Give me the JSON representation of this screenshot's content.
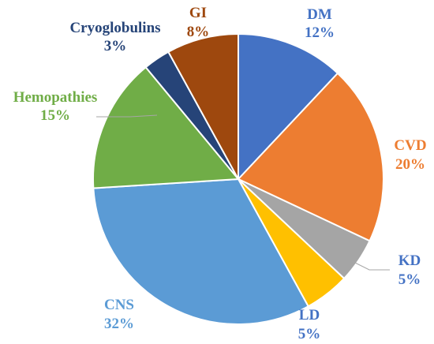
{
  "chart_data": {
    "type": "pie",
    "title": "",
    "slices": [
      {
        "name": "DM",
        "value": 12,
        "pct_label": "12%",
        "color": "#4472C4",
        "label_color": "#4472C4"
      },
      {
        "name": "CVD",
        "value": 20,
        "pct_label": "20%",
        "color": "#ED7D31",
        "label_color": "#ED7D31"
      },
      {
        "name": "KD",
        "value": 5,
        "pct_label": "5%",
        "color": "#A5A5A5",
        "label_color": "#4472C4"
      },
      {
        "name": "LD",
        "value": 5,
        "pct_label": "5%",
        "color": "#FFC000",
        "label_color": "#4472C4"
      },
      {
        "name": "CNS",
        "value": 32,
        "pct_label": "32%",
        "color": "#5B9BD5",
        "label_color": "#5B9BD5"
      },
      {
        "name": "Hemopathies",
        "value": 15,
        "pct_label": "15%",
        "color": "#70AD47",
        "label_color": "#70AD47"
      },
      {
        "name": "Cryoglobulins",
        "value": 3,
        "pct_label": "3%",
        "color": "#264478",
        "label_color": "#264478"
      },
      {
        "name": "GI",
        "value": 8,
        "pct_label": "8%",
        "color": "#9E480E",
        "label_color": "#9E480E"
      }
    ],
    "start_angle": "12 o'clock, clockwise",
    "legend": "none",
    "data_labels": "category name and percentage, outside with leader lines"
  }
}
